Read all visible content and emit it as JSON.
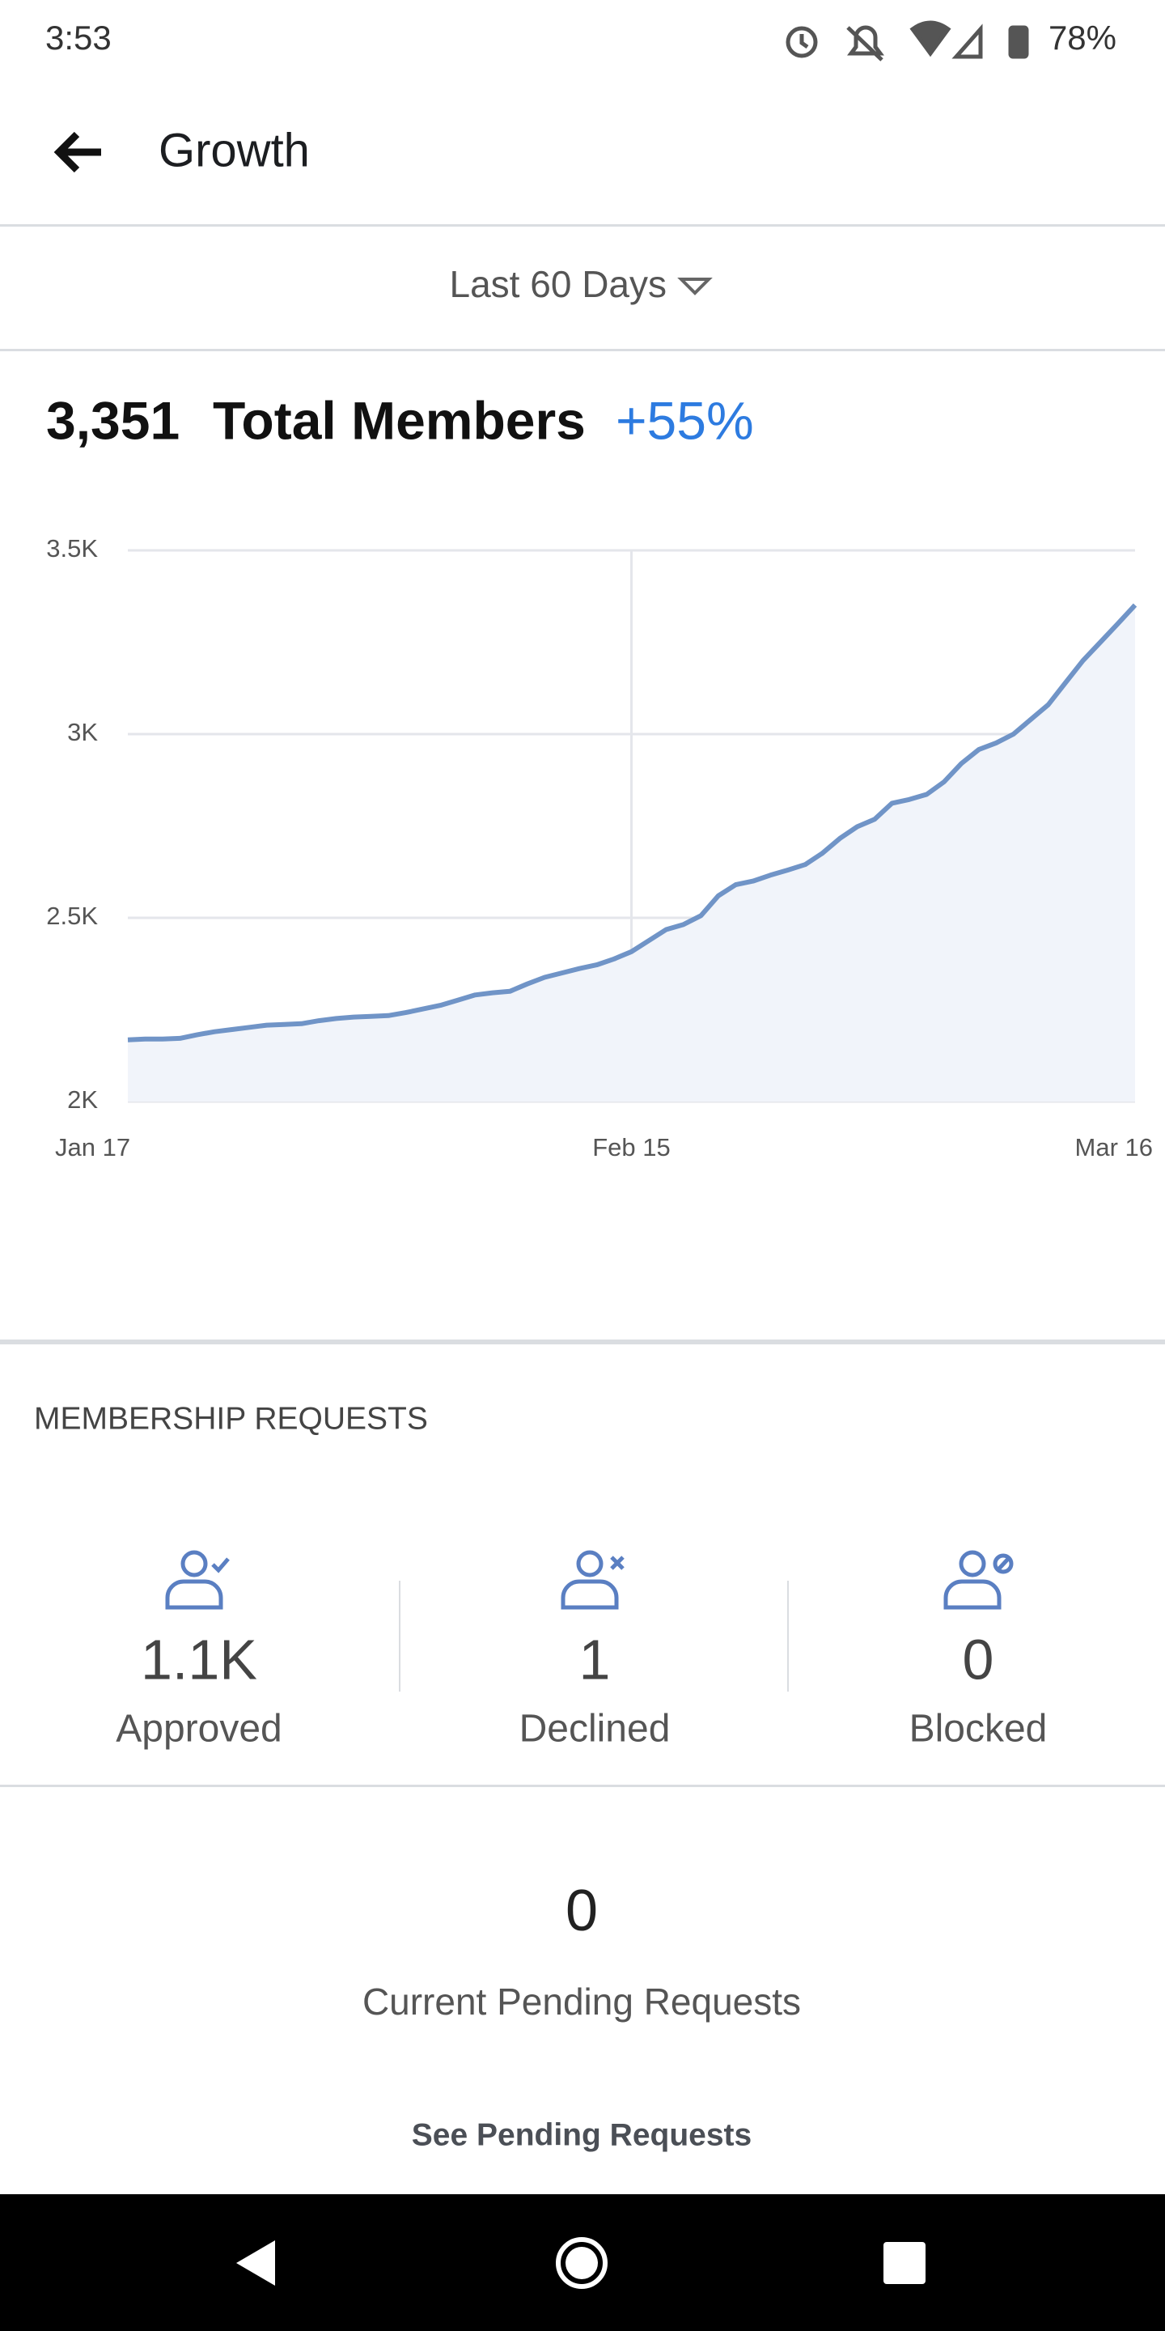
{
  "status_bar": {
    "time": "3:53",
    "battery": "78%"
  },
  "header": {
    "title": "Growth"
  },
  "filter": {
    "label": "Last 60 Days"
  },
  "summary": {
    "count": "3,351",
    "label": "Total Members",
    "change": "+55%"
  },
  "chart_data": {
    "type": "area",
    "color": "#7094c7",
    "area_color": "#f1f4fa",
    "categories": [
      "Jan 17",
      null,
      null,
      null,
      null,
      null,
      null,
      null,
      null,
      null,
      null,
      null,
      null,
      null,
      null,
      null,
      null,
      null,
      null,
      null,
      null,
      null,
      null,
      null,
      null,
      null,
      null,
      null,
      null,
      "Feb 15",
      null,
      null,
      null,
      null,
      null,
      null,
      null,
      null,
      null,
      null,
      null,
      null,
      null,
      null,
      null,
      null,
      null,
      null,
      null,
      null,
      null,
      null,
      null,
      null,
      null,
      null,
      null,
      null,
      "Mar 16"
    ],
    "values": [
      2168,
      2170,
      2170,
      2172,
      2182,
      2190,
      2196,
      2202,
      2208,
      2210,
      2212,
      2220,
      2226,
      2230,
      2232,
      2234,
      2242,
      2252,
      2262,
      2276,
      2290,
      2296,
      2300,
      2320,
      2338,
      2350,
      2362,
      2372,
      2388,
      2408,
      2438,
      2468,
      2482,
      2506,
      2560,
      2590,
      2600,
      2616,
      2630,
      2645,
      2676,
      2716,
      2748,
      2768,
      2812,
      2822,
      2836,
      2870,
      2920,
      2958,
      2976,
      3000,
      3040,
      3080,
      3140,
      3200,
      3250,
      3300,
      3351
    ],
    "ylim": [
      2000,
      3500
    ],
    "yticks": [
      {
        "value": 2000,
        "label": "2K"
      },
      {
        "value": 2500,
        "label": "2.5K"
      },
      {
        "value": 3000,
        "label": "3K"
      },
      {
        "value": 3500,
        "label": "3.5K"
      }
    ],
    "grid": true
  },
  "membership": {
    "title": "MEMBERSHIP REQUESTS",
    "stats": [
      {
        "value": "1.1K",
        "label": "Approved"
      },
      {
        "value": "1",
        "label": "Declined"
      },
      {
        "value": "0",
        "label": "Blocked"
      }
    ]
  },
  "pending": {
    "count": "0",
    "label": "Current Pending Requests",
    "action": "See Pending Requests"
  }
}
